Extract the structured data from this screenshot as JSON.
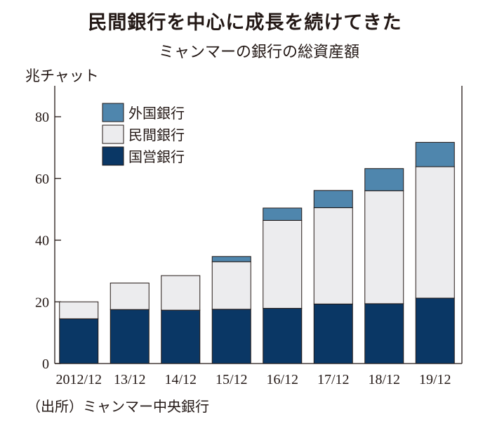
{
  "title": "民間銀行を中心に成長を続けてきた",
  "subtitle": "ミャンマーの銀行の総資産額",
  "source": "（出所）ミャンマー中央銀行",
  "chart_data": {
    "type": "bar",
    "stacked": true,
    "ylabel": "兆チャット",
    "ylim": [
      0,
      80
    ],
    "yticks": [
      0,
      20,
      40,
      60,
      80
    ],
    "categories": [
      "2012/12",
      "13/12",
      "14/12",
      "15/12",
      "16/12",
      "17/12",
      "18/12",
      "19/12"
    ],
    "series": [
      {
        "name": "国営銀行",
        "color": "#0a3765",
        "values": [
          14.5,
          17.5,
          17.3,
          17.6,
          17.9,
          19.3,
          19.4,
          21.2
        ]
      },
      {
        "name": "民間銀行",
        "color": "#ececee",
        "values": [
          5.5,
          8.6,
          11.2,
          15.4,
          28.5,
          31.2,
          36.6,
          42.6
        ]
      },
      {
        "name": "外国銀行",
        "color": "#4f86ad",
        "values": [
          0,
          0,
          0,
          1.7,
          4.0,
          5.6,
          7.2,
          7.9
        ]
      }
    ],
    "legend": [
      "外国銀行",
      "民間銀行",
      "国営銀行"
    ],
    "legend_position": "top-left",
    "grid": false
  }
}
